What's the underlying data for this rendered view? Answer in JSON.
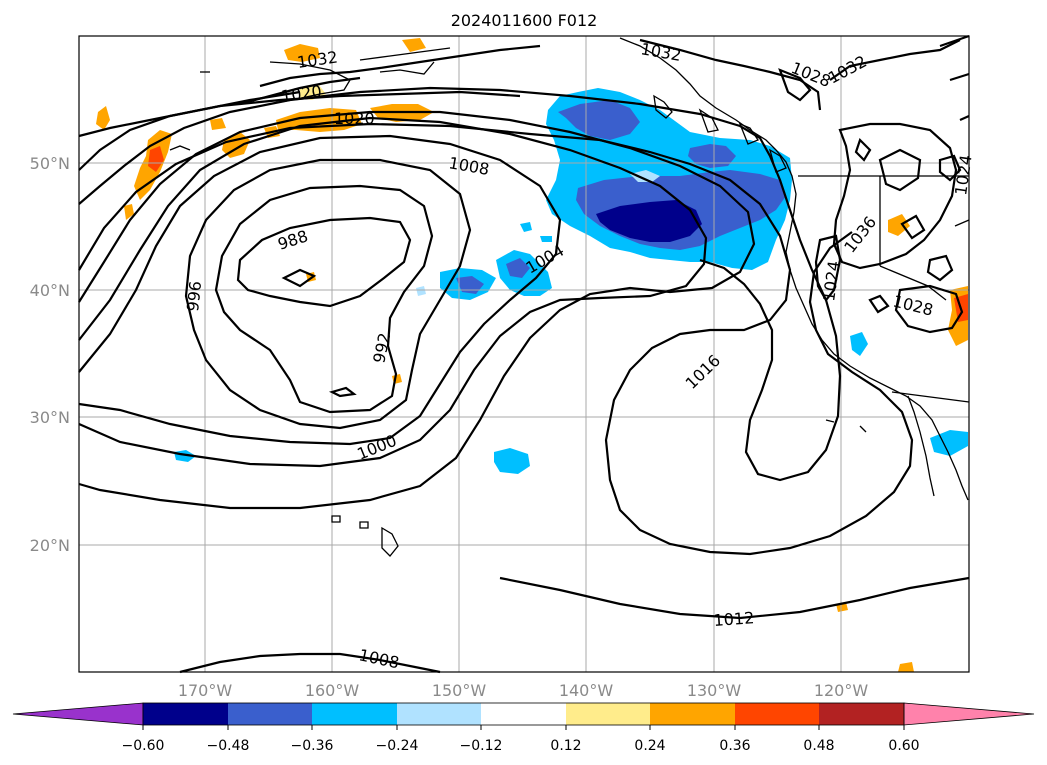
{
  "title": "2024011600 F012",
  "map": {
    "lat_ticks": [
      {
        "label": "50°N",
        "value": 50
      },
      {
        "label": "40°N",
        "value": 40
      },
      {
        "label": "30°N",
        "value": 30
      },
      {
        "label": "20°N",
        "value": 20
      }
    ],
    "lon_ticks": [
      {
        "label": "170°W",
        "value": -170
      },
      {
        "label": "160°W",
        "value": -160
      },
      {
        "label": "150°W",
        "value": -150
      },
      {
        "label": "140°W",
        "value": -140
      },
      {
        "label": "130°W",
        "value": -130
      },
      {
        "label": "120°W",
        "value": -120
      }
    ],
    "extent": {
      "lon_min": -180,
      "lon_max": -110,
      "lat_min": 10,
      "lat_max": 60
    },
    "contour_labels": [
      "1032",
      "1032",
      "1028",
      "1032",
      "1020",
      "1020",
      "1008",
      "988",
      "996",
      "992",
      "1004",
      "1016",
      "1000",
      "1012",
      "1008",
      "1036",
      "1024",
      "1024",
      "1028"
    ]
  },
  "colorbar": {
    "ticks": [
      "−0.60",
      "−0.48",
      "−0.36",
      "−0.24",
      "−0.12",
      "0.12",
      "0.24",
      "0.36",
      "0.48",
      "0.60"
    ],
    "colors": [
      "#9932CC",
      "#00008B",
      "#3A5FCD",
      "#00BFFF",
      "#B0E2FF",
      "#FFFFFF",
      "#FFEC8B",
      "#FFA500",
      "#FF4500",
      "#B22222",
      "#FF82AB"
    ]
  }
}
